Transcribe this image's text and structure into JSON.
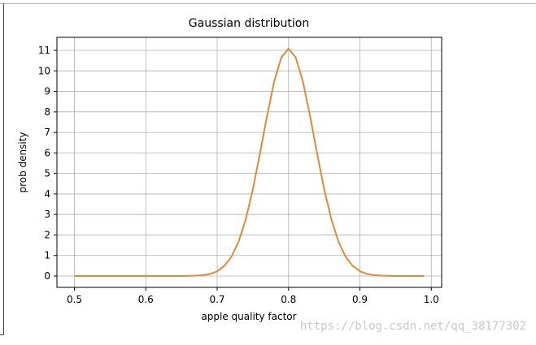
{
  "chart_data": {
    "type": "line",
    "title": "Gaussian distribution",
    "x_label": "apple quality factor",
    "y_label": "prob density",
    "x": [
      0.5,
      0.51,
      0.52,
      0.53,
      0.54,
      0.55,
      0.56,
      0.57,
      0.58,
      0.59,
      0.6,
      0.61,
      0.62,
      0.63,
      0.64,
      0.65,
      0.66,
      0.67,
      0.68,
      0.69,
      0.7,
      0.71,
      0.72,
      0.73,
      0.74,
      0.75,
      0.76,
      0.77,
      0.78,
      0.79,
      0.8,
      0.81,
      0.82,
      0.83,
      0.84,
      0.85,
      0.86,
      0.87,
      0.88,
      0.89,
      0.9,
      0.91,
      0.92,
      0.93,
      0.94,
      0.95,
      0.96,
      0.97,
      0.98,
      0.99
    ],
    "series": [
      {
        "color": "#e0893a",
        "values": [
          0,
          0,
          0,
          0,
          0,
          0,
          0,
          0,
          0,
          0,
          0,
          0,
          0,
          0,
          0,
          0,
          0.01,
          0.02,
          0.04,
          0.1,
          0.23,
          0.49,
          0.94,
          1.67,
          2.76,
          4.22,
          5.98,
          7.83,
          9.5,
          10.66,
          11.08,
          10.66,
          9.5,
          7.83,
          5.98,
          4.22,
          2.76,
          1.67,
          0.94,
          0.49,
          0.23,
          0.1,
          0.04,
          0.02,
          0.01,
          0,
          0,
          0,
          0,
          0
        ]
      }
    ],
    "xlim": [
      0.4755,
      1.0145
    ],
    "ylim": [
      -0.554,
      11.634
    ],
    "xticks": [
      0.5,
      0.6,
      0.7,
      0.8,
      0.9,
      {
        "value": 1,
        "label": "1.0"
      }
    ],
    "yticks": [
      0,
      1,
      2,
      3,
      4,
      5,
      6,
      7,
      8,
      9,
      10,
      11
    ],
    "grid": true
  },
  "watermark": "https://blog.csdn.net/qq_38177302"
}
